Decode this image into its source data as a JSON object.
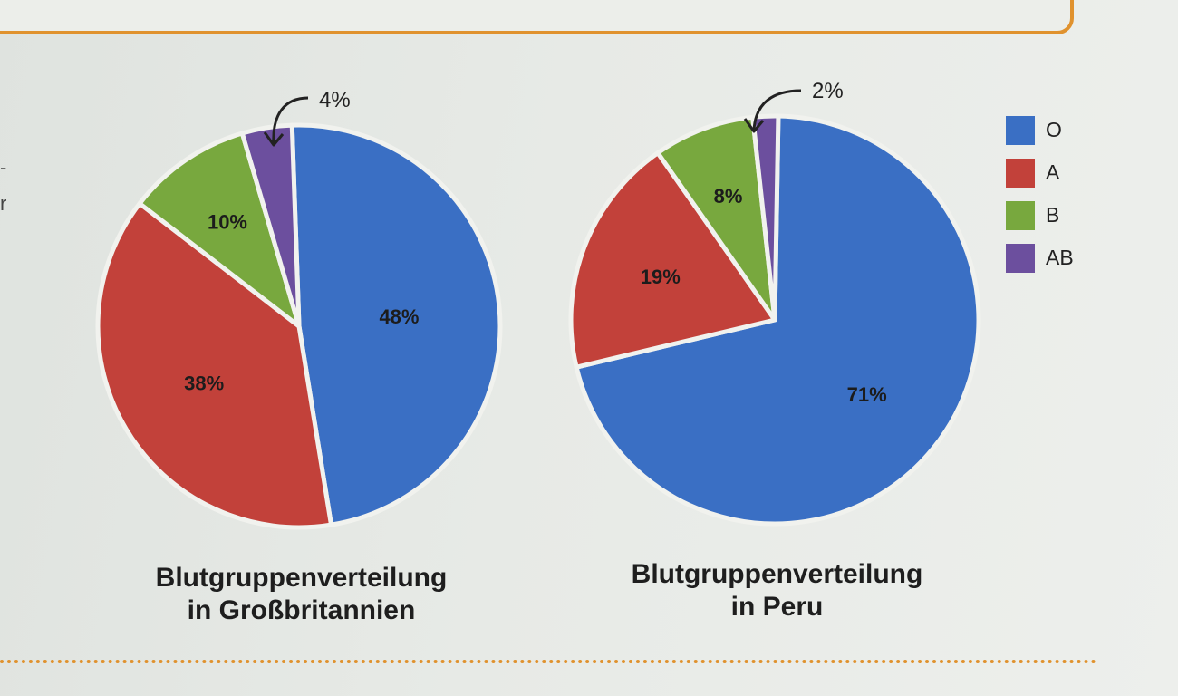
{
  "page": {
    "edge_text": [
      "-",
      "r"
    ]
  },
  "colors": {
    "O": "#3a6fc4",
    "A": "#c2413a",
    "B": "#78a83e",
    "AB": "#6c4f9e",
    "accent": "#e0922e"
  },
  "legend": [
    {
      "label": "O",
      "color": "#3a6fc4"
    },
    {
      "label": "A",
      "color": "#c2413a"
    },
    {
      "label": "B",
      "color": "#78a83e"
    },
    {
      "label": "AB",
      "color": "#6c4f9e"
    }
  ],
  "chart_data": [
    {
      "type": "pie",
      "title_line1": "Blutgruppenverteilung",
      "title_line2": "in Großbritannien",
      "categories": [
        "O",
        "A",
        "B",
        "AB"
      ],
      "values": [
        48,
        38,
        10,
        4
      ],
      "labels": [
        "48%",
        "38%",
        "10%",
        "4%"
      ]
    },
    {
      "type": "pie",
      "title_line1": "Blutgruppenverteilung",
      "title_line2": "in Peru",
      "categories": [
        "O",
        "A",
        "B",
        "AB"
      ],
      "values": [
        71,
        19,
        8,
        2
      ],
      "labels": [
        "71%",
        "19%",
        "8%",
        "2%"
      ]
    }
  ]
}
